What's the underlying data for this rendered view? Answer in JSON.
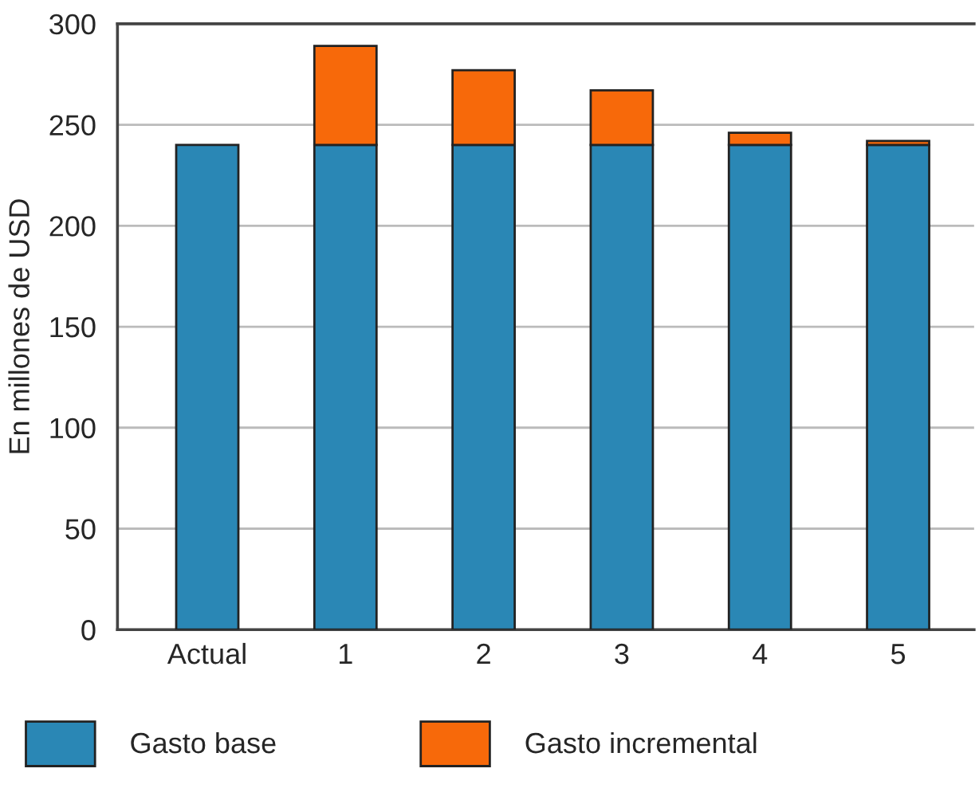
{
  "chart_data": {
    "type": "bar",
    "stacked": true,
    "ylabel": "En millones de USD",
    "categories": [
      "Actual",
      "1",
      "2",
      "3",
      "4",
      "5"
    ],
    "series": [
      {
        "name": "Gasto base",
        "color": "#2a87b5",
        "values": [
          240,
          240,
          240,
          240,
          240,
          240
        ]
      },
      {
        "name": "Gasto incremental",
        "color": "#f7690a",
        "values": [
          null,
          49,
          37,
          27,
          6,
          2
        ]
      }
    ],
    "ylim": [
      0,
      300
    ],
    "yticks": [
      0,
      50,
      100,
      150,
      200,
      250,
      300
    ],
    "grid": "y",
    "legend": "bottom"
  }
}
